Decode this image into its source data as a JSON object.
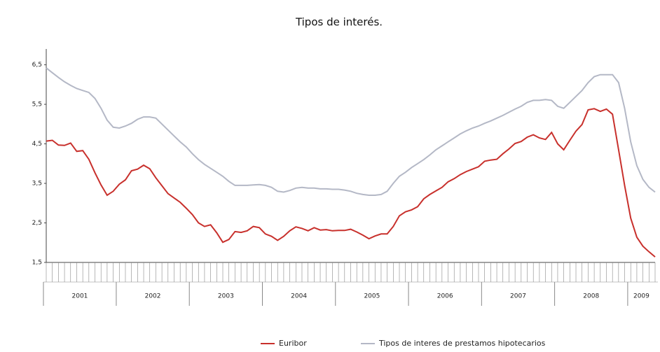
{
  "chart_data": {
    "type": "line",
    "title": "Tipos de interés.",
    "categories": [
      null,
      null,
      null,
      null,
      null,
      null,
      null,
      null,
      null,
      null,
      null,
      null,
      null,
      null,
      null,
      null,
      null,
      null,
      null,
      null,
      null,
      null,
      null,
      null,
      null,
      null,
      null,
      null,
      null,
      null,
      null,
      null,
      null,
      null,
      null,
      null,
      null,
      null,
      null,
      null,
      null,
      null,
      null,
      null,
      null,
      null,
      null,
      null,
      null,
      null,
      null,
      null,
      null,
      null,
      null,
      null,
      null,
      null,
      null,
      null,
      null,
      null,
      null,
      null,
      null,
      null,
      null,
      null,
      null,
      null,
      null,
      null,
      null,
      null,
      null,
      null,
      null,
      null,
      null,
      null,
      null,
      null,
      null,
      null,
      null,
      null,
      null,
      null,
      null,
      null,
      null,
      null,
      null,
      null,
      null,
      null,
      null,
      null,
      null,
      null,
      null
    ],
    "x_groups": [
      {
        "label": "2001",
        "count": 12
      },
      {
        "label": "2002",
        "count": 12
      },
      {
        "label": "2003",
        "count": 12
      },
      {
        "label": "2004",
        "count": 12
      },
      {
        "label": "2005",
        "count": 12
      },
      {
        "label": "2006",
        "count": 12
      },
      {
        "label": "2007",
        "count": 12
      },
      {
        "label": "2008",
        "count": 12
      },
      {
        "label": "2009",
        "count": 5
      }
    ],
    "series": [
      {
        "name": "Euribor",
        "color": "#c8302c",
        "values": [
          4.57,
          4.59,
          4.47,
          4.46,
          4.52,
          4.31,
          4.33,
          4.11,
          3.77,
          3.46,
          3.2,
          3.3,
          3.48,
          3.59,
          3.82,
          3.86,
          3.96,
          3.87,
          3.64,
          3.44,
          3.24,
          3.13,
          3.02,
          2.87,
          2.71,
          2.5,
          2.41,
          2.45,
          2.25,
          2.01,
          2.08,
          2.28,
          2.26,
          2.3,
          2.41,
          2.38,
          2.22,
          2.16,
          2.06,
          2.16,
          2.3,
          2.4,
          2.36,
          2.3,
          2.38,
          2.32,
          2.33,
          2.3,
          2.31,
          2.31,
          2.34,
          2.27,
          2.19,
          2.1,
          2.17,
          2.22,
          2.22,
          2.41,
          2.68,
          2.78,
          2.83,
          2.91,
          3.11,
          3.22,
          3.31,
          3.4,
          3.54,
          3.62,
          3.72,
          3.8,
          3.86,
          3.92,
          4.06,
          4.09,
          4.11,
          4.25,
          4.37,
          4.51,
          4.56,
          4.67,
          4.73,
          4.65,
          4.61,
          4.79,
          4.5,
          4.35,
          4.59,
          4.82,
          4.99,
          5.36,
          5.39,
          5.32,
          5.38,
          5.25,
          4.35,
          3.45,
          2.62,
          2.14,
          1.91,
          1.77,
          1.64
        ]
      },
      {
        "name": "Tipos de interes de prestamos hipotecarios",
        "color": "#b4b8c6",
        "values": [
          6.42,
          6.3,
          6.18,
          6.07,
          5.98,
          5.9,
          5.85,
          5.8,
          5.65,
          5.4,
          5.1,
          4.92,
          4.9,
          4.95,
          5.02,
          5.12,
          5.18,
          5.18,
          5.15,
          5.0,
          4.85,
          4.7,
          4.55,
          4.42,
          4.25,
          4.1,
          3.98,
          3.88,
          3.78,
          3.68,
          3.55,
          3.45,
          3.45,
          3.45,
          3.46,
          3.47,
          3.45,
          3.4,
          3.3,
          3.28,
          3.32,
          3.38,
          3.4,
          3.38,
          3.38,
          3.36,
          3.36,
          3.35,
          3.35,
          3.33,
          3.3,
          3.25,
          3.22,
          3.2,
          3.2,
          3.22,
          3.3,
          3.5,
          3.68,
          3.78,
          3.9,
          4.0,
          4.1,
          4.22,
          4.35,
          4.45,
          4.55,
          4.65,
          4.75,
          4.83,
          4.9,
          4.95,
          5.02,
          5.08,
          5.15,
          5.22,
          5.3,
          5.38,
          5.45,
          5.55,
          5.6,
          5.6,
          5.62,
          5.6,
          5.45,
          5.4,
          5.55,
          5.7,
          5.85,
          6.05,
          6.2,
          6.25,
          6.25,
          6.25,
          6.05,
          5.4,
          4.55,
          3.95,
          3.6,
          3.4,
          3.28
        ]
      }
    ],
    "ylim": [
      1.5,
      6.9
    ],
    "yticks": [
      {
        "value": 1.5,
        "label": "1,5"
      },
      {
        "value": 2.5,
        "label": "2,5"
      },
      {
        "value": 3.5,
        "label": "3,5"
      },
      {
        "value": 4.5,
        "label": "4,5"
      },
      {
        "value": 5.5,
        "label": "5,5"
      },
      {
        "value": 6.5,
        "label": "6,5"
      }
    ],
    "grid": false
  }
}
